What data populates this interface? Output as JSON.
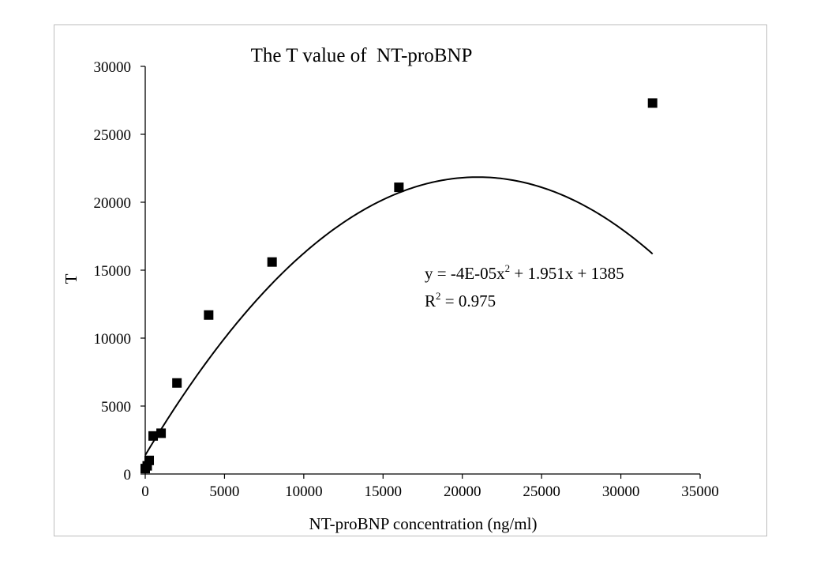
{
  "chart_data": {
    "type": "scatter",
    "title": "The T value of  NT-proBNP",
    "xlabel": "NT-proBNP concentration (ng/ml)",
    "ylabel": "T",
    "xlim": [
      0,
      35000
    ],
    "ylim": [
      0,
      30000
    ],
    "x_ticks": [
      0,
      5000,
      10000,
      15000,
      20000,
      25000,
      30000,
      35000
    ],
    "y_ticks": [
      0,
      5000,
      10000,
      15000,
      20000,
      25000,
      30000
    ],
    "series": [
      {
        "x": [
          0,
          125,
          250,
          500,
          1000,
          2000,
          4000,
          8000,
          16000,
          32000
        ],
        "y": [
          400,
          600,
          1000,
          2800,
          3000,
          6700,
          11700,
          15600,
          21100,
          27300
        ],
        "marker": "square",
        "color": "#000000"
      }
    ],
    "trendline": {
      "type": "polynomial",
      "order": 2,
      "coefficients": {
        "a": -4.65e-05,
        "b": 1.951,
        "c": 1385
      },
      "x_range": [
        0,
        32000
      ],
      "color": "#000000"
    },
    "annotations": {
      "equation_prefix": "y = -4E-05x",
      "equation_exp": "2",
      "equation_suffix": " + 1.951x + 1385",
      "r2_prefix": "R",
      "r2_exp": "2",
      "r2_suffix": " = 0.975"
    },
    "grid": false,
    "legend": "none"
  }
}
